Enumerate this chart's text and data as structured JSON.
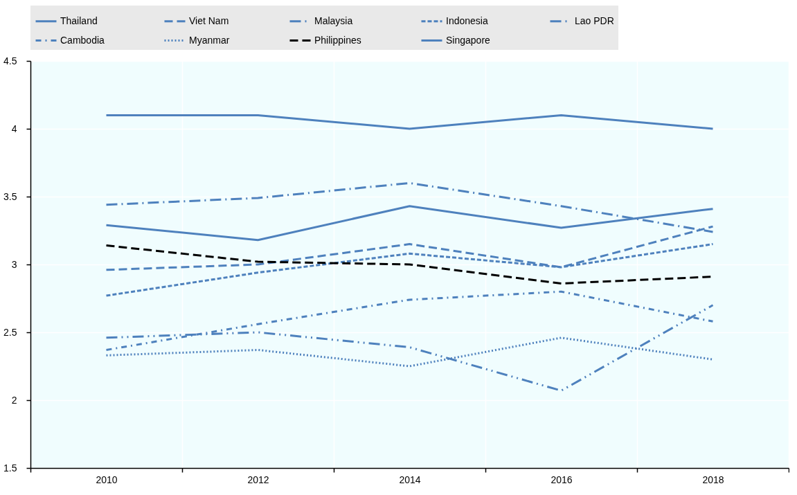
{
  "chart_data": {
    "type": "line",
    "categories": [
      "2010",
      "2012",
      "2014",
      "2016",
      "2018"
    ],
    "ylim": [
      1.5,
      4.5
    ],
    "yticks": [
      1.5,
      2,
      2.5,
      3,
      3.5,
      4,
      4.5
    ],
    "grid": true,
    "legend": "top",
    "series": [
      {
        "name": "Thailand",
        "color": "#4e81bd",
        "line_style": "solid",
        "values": [
          3.29,
          3.18,
          3.43,
          3.27,
          3.41
        ]
      },
      {
        "name": "Viet Nam",
        "color": "#4e81bd",
        "line_style": "dashed",
        "values": [
          2.96,
          3.0,
          3.15,
          2.98,
          3.28
        ]
      },
      {
        "name": "Malaysia",
        "color": "#4e81bd",
        "line_style": "longdashdot",
        "values": [
          3.44,
          3.49,
          3.6,
          3.43,
          3.24
        ]
      },
      {
        "name": "Indonesia",
        "color": "#4e81bd",
        "line_style": "shortdash",
        "values": [
          2.77,
          2.94,
          3.08,
          2.98,
          3.15
        ]
      },
      {
        "name": "Lao PDR",
        "color": "#4e81bd",
        "line_style": "longdashdotdot",
        "values": [
          2.46,
          2.5,
          2.39,
          2.07,
          2.7
        ]
      },
      {
        "name": "Cambodia",
        "color": "#4e81bd",
        "line_style": "dashdot",
        "values": [
          2.37,
          2.56,
          2.74,
          2.8,
          2.58
        ]
      },
      {
        "name": "Myanmar",
        "color": "#4e81bd",
        "line_style": "dotted",
        "values": [
          2.33,
          2.37,
          2.25,
          2.46,
          2.3
        ]
      },
      {
        "name": "Philippines",
        "color": "#000000",
        "line_style": "dashed",
        "values": [
          3.14,
          3.02,
          3.0,
          2.86,
          2.91
        ]
      },
      {
        "name": "Singapore",
        "color": "#4e81bd",
        "line_style": "solid",
        "values": [
          4.1,
          4.1,
          4.0,
          4.1,
          4.0
        ]
      }
    ]
  }
}
